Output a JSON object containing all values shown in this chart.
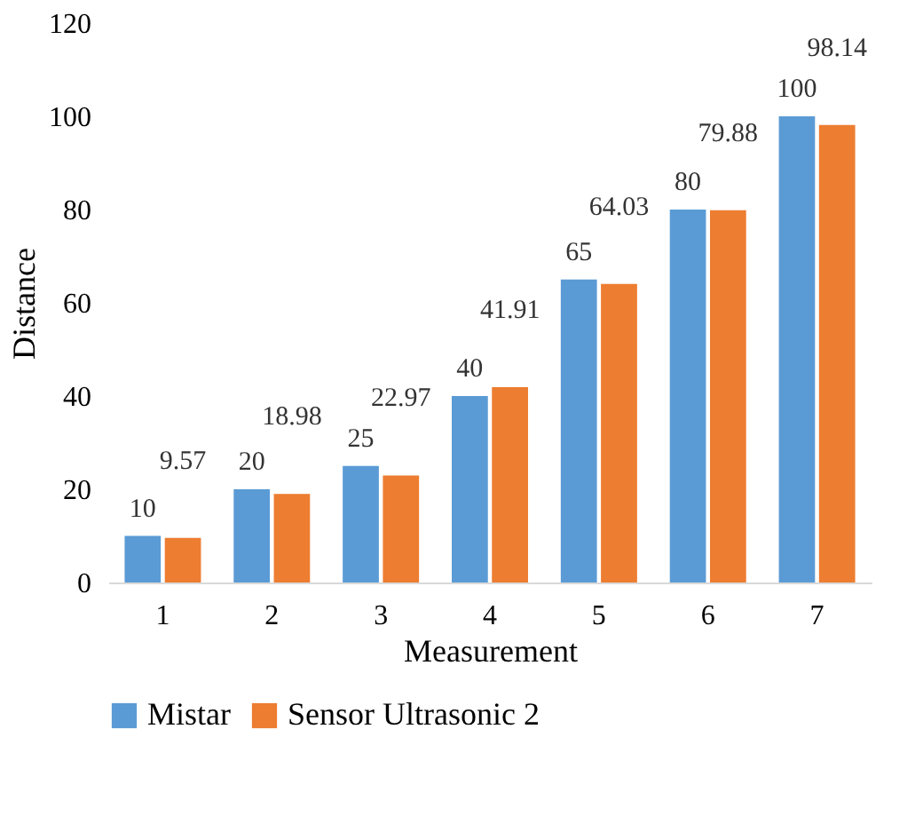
{
  "chart_data": {
    "type": "bar",
    "xlabel": "Measurement",
    "ylabel": "Distance",
    "categories": [
      "1",
      "2",
      "3",
      "4",
      "5",
      "6",
      "7"
    ],
    "series": [
      {
        "name": "Mistar",
        "color": "#5b9bd5",
        "values": [
          10,
          20,
          25,
          40,
          65,
          80,
          100
        ]
      },
      {
        "name": "Sensor Ultrasonic 2",
        "color": "#ed7d31",
        "values": [
          9.57,
          18.98,
          22.97,
          41.91,
          64.03,
          79.88,
          98.14
        ]
      }
    ],
    "ylim": [
      0,
      120
    ],
    "yticks": [
      0,
      20,
      40,
      60,
      80,
      100,
      120
    ],
    "grid": false,
    "legend": "bottom",
    "data_labels": true
  }
}
